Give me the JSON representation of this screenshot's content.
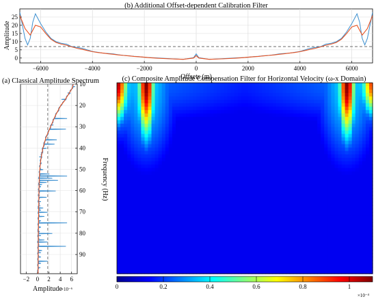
{
  "chart_data": [
    {
      "panel": "b",
      "type": "line",
      "title": "(b) Additional Offset-dependent Calibration Filter",
      "xlabel": "Offsets (m)",
      "ylabel": "Amplitude",
      "xlim": [
        -6800,
        6800
      ],
      "ylim": [
        -3,
        30
      ],
      "xticks": [
        -6000,
        -4000,
        -2000,
        0,
        2000,
        4000,
        6000
      ],
      "yticks": [
        0,
        5,
        10,
        15,
        20,
        25
      ],
      "hline": 7,
      "colors": {
        "measured": "#3b8fd0",
        "smooth": "#e8501f",
        "reference": "#555555"
      },
      "series": [
        {
          "style": "measured",
          "x": [
            -6800,
            -6700,
            -6600,
            -6500,
            -6400,
            -6300,
            -6200,
            -6100,
            -6000,
            -5800,
            -5600,
            -5400,
            -5200,
            -5000,
            -4800,
            -4600,
            -4400,
            -4200,
            -4000,
            -3800,
            -3600,
            -3400,
            -3200,
            -3000,
            -2800,
            -2600,
            -2400,
            -2200,
            -2000,
            -1800,
            -1500,
            -1000,
            -500,
            -100,
            0,
            100,
            500,
            1000,
            1500,
            1800,
            2000,
            2200,
            2400,
            2600,
            2800,
            3000,
            3200,
            3400,
            3600,
            3800,
            4000,
            4200,
            4400,
            4600,
            4800,
            5000,
            5200,
            5400,
            5600,
            5800,
            6000,
            6100,
            6200,
            6300,
            6400,
            6500,
            6600,
            6700,
            6800
          ],
          "y": [
            28,
            20,
            12,
            8,
            12,
            22,
            27,
            24,
            21,
            16,
            12,
            10,
            9,
            8.5,
            7,
            6.5,
            6,
            5,
            4,
            3.5,
            3,
            2.8,
            2.5,
            2,
            1.6,
            1.4,
            1.1,
            0.9,
            0.5,
            0.3,
            0.1,
            -0.4,
            -0.8,
            0.2,
            2.5,
            0.2,
            -0.8,
            -0.4,
            0.1,
            0.3,
            0.5,
            0.9,
            1.1,
            1.4,
            1.6,
            2,
            2.5,
            2.8,
            3,
            3.5,
            4,
            5,
            6,
            6.5,
            7,
            8.5,
            9,
            10,
            12,
            16,
            21,
            24,
            27,
            22,
            12,
            8,
            12,
            20,
            28
          ]
        },
        {
          "style": "smooth",
          "x": [
            -6800,
            -6600,
            -6400,
            -6200,
            -6000,
            -5800,
            -5600,
            -5400,
            -5200,
            -5000,
            -4800,
            -4600,
            -4400,
            -4200,
            -4000,
            -3800,
            -3600,
            -3400,
            -3200,
            -3000,
            -2800,
            -2600,
            -2400,
            -2200,
            -2000,
            -1800,
            -1500,
            -1000,
            -500,
            -100,
            0,
            100,
            500,
            1000,
            1500,
            1800,
            2000,
            2200,
            2400,
            2600,
            2800,
            3000,
            3200,
            3400,
            3600,
            3800,
            4000,
            4200,
            4400,
            4600,
            4800,
            5000,
            5200,
            5400,
            5600,
            5800,
            6000,
            6200,
            6400,
            6600,
            6800
          ],
          "y": [
            26,
            18,
            14,
            20,
            19,
            15,
            11.5,
            9.5,
            8.5,
            7.8,
            6.8,
            6,
            5.3,
            4.6,
            3.9,
            3.4,
            3,
            2.6,
            2.3,
            1.9,
            1.6,
            1.3,
            1,
            0.8,
            0.5,
            0.2,
            -0.1,
            -0.5,
            -0.8,
            0,
            1.5,
            0,
            -0.8,
            -0.5,
            -0.1,
            0.2,
            0.5,
            0.8,
            1,
            1.3,
            1.6,
            1.9,
            2.3,
            2.6,
            3,
            3.4,
            3.9,
            4.6,
            5.3,
            6,
            6.8,
            7.8,
            8.5,
            9.5,
            11.5,
            15,
            19,
            20,
            14,
            18,
            26
          ]
        }
      ]
    },
    {
      "panel": "a",
      "type": "line",
      "title": "(a) Classical Amplitude Spectrum",
      "xlabel": "Amplitude",
      "xunit": "×10⁻⁶",
      "ylabel": "Frequency (Hz)",
      "xlim": [
        -3,
        7
      ],
      "ylim": [
        10,
        99
      ],
      "xticks": [
        -2,
        0,
        2,
        4,
        6
      ],
      "yticks": [
        10,
        20,
        30,
        40,
        50,
        60,
        70,
        80,
        90
      ],
      "vline": 1.8,
      "colors": {
        "measured": "#3b8fd0",
        "smooth": "#e8501f",
        "reference": "#555555"
      },
      "smooth": {
        "f": [
          10,
          12,
          15,
          18,
          20,
          25,
          30,
          35,
          40,
          45,
          50,
          55,
          60,
          70,
          80,
          90,
          99
        ],
        "a": [
          6.3,
          6.1,
          5.4,
          4.7,
          4.1,
          3.1,
          2.3,
          1.5,
          0.95,
          0.6,
          0.4,
          0.3,
          0.25,
          0.2,
          0.15,
          0.12,
          0.1
        ]
      },
      "spikes": {
        "f": [
          11,
          14,
          17,
          22,
          26,
          29,
          31,
          34,
          36,
          38,
          40,
          42,
          44,
          47,
          50,
          52,
          53,
          54,
          55,
          56,
          57,
          58,
          60,
          62,
          63,
          65,
          67,
          68,
          69,
          70,
          72,
          74,
          75,
          77,
          79,
          80,
          81,
          83,
          84,
          86,
          88,
          89,
          91,
          93,
          94,
          96
        ],
        "a": [
          6.6,
          5.3,
          4.2,
          3.8,
          5.2,
          2.8,
          5.0,
          1.6,
          3.4,
          3.0,
          1.6,
          0.6,
          0.3,
          0.4,
          1.0,
          2.1,
          5.2,
          2.6,
          3.6,
          1.6,
          0.8,
          0.6,
          3.2,
          0.4,
          1.6,
          0.6,
          0.4,
          1.0,
          0.6,
          1.8,
          1.2,
          0.6,
          5.2,
          0.6,
          0.4,
          2.6,
          0.6,
          1.2,
          1.8,
          5.0,
          0.8,
          0.6,
          0.6,
          1.8,
          0.6,
          0.4
        ]
      }
    },
    {
      "panel": "c",
      "type": "heatmap",
      "title": "(c) Composite Amplitude Compensation Filter for Horizontal Velocity (ω-x Domain)",
      "colorbar": {
        "ticks": [
          0,
          0.2,
          0.4,
          0.6,
          0.8,
          1
        ],
        "range": [
          0,
          1.1
        ],
        "scale_label": "×10⁻⁴",
        "colors": [
          "#00008f",
          "#0000ff",
          "#0080ff",
          "#00ffff",
          "#80ff80",
          "#ffff00",
          "#ff8000",
          "#ff0000",
          "#800000"
        ]
      },
      "features": [
        {
          "offset_frac": 0.0,
          "peak": 1.05,
          "freq_frac": 0.14
        },
        {
          "offset_frac": 0.115,
          "peak": 1.1,
          "freq_frac": 0.2
        },
        {
          "offset_frac": 0.9,
          "peak": 1.1,
          "freq_frac": 0.2
        },
        {
          "offset_frac": 1.0,
          "peak": 0.9,
          "freq_frac": 0.12
        }
      ]
    }
  ]
}
